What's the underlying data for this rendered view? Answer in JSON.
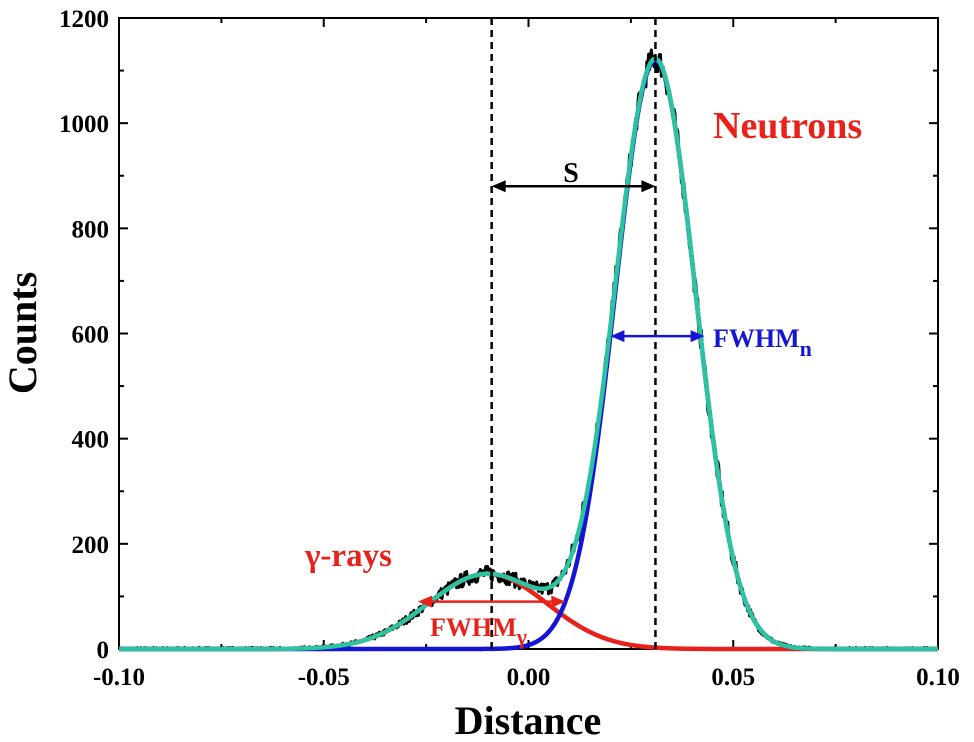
{
  "chart_data": {
    "type": "line",
    "title": "",
    "xlabel": "Distance",
    "ylabel": "Counts",
    "xlim": [
      -0.1,
      0.1
    ],
    "ylim": [
      0,
      1200
    ],
    "x_ticks": [
      -0.1,
      -0.05,
      0.0,
      0.05,
      0.1
    ],
    "x_tick_labels": [
      "-0.10",
      "-0.05",
      "0.00",
      "0.05",
      "0.10"
    ],
    "y_ticks": [
      0,
      200,
      400,
      600,
      800,
      1000,
      1200
    ],
    "y_tick_labels": [
      "0",
      "200",
      "400",
      "600",
      "800",
      "1000",
      "1200"
    ],
    "grid": false,
    "series": [
      {
        "name": "measured",
        "color": "#000000",
        "kind": "noisy-sum",
        "noise_amplitude": 25,
        "note": "experimental PSD distribution (noisy)"
      },
      {
        "name": "gamma-fit",
        "color": "#e8221b",
        "kind": "gaussian",
        "center": -0.01,
        "amplitude": 143,
        "sigma": 0.0145
      },
      {
        "name": "neutron-fit",
        "color": "#1515d6",
        "kind": "gaussian",
        "center": 0.031,
        "amplitude": 1120,
        "sigma": 0.0098
      },
      {
        "name": "total-fit",
        "color": "#2bc3a0",
        "kind": "sum"
      }
    ],
    "markers": {
      "gamma_peak_x": -0.009,
      "neutron_peak_x": 0.031,
      "separation": {
        "label": "S",
        "y": 880,
        "x1": -0.009,
        "x2": 0.031
      },
      "fwhm_gamma": {
        "label": "FWHM",
        "subscript": "γ",
        "y": 90,
        "x1": -0.027,
        "x2": 0.009,
        "color": "#e8221b"
      },
      "fwhm_neutron": {
        "label": "FWHM",
        "subscript": "n",
        "y": 595,
        "x1": 0.02,
        "x2": 0.043,
        "color": "#1515d6"
      }
    },
    "annotations": {
      "neutrons": {
        "text": "Neutrons",
        "color": "#e8221b"
      },
      "gamma_rays": {
        "text": "γ-rays",
        "color": "#e8221b"
      }
    }
  }
}
